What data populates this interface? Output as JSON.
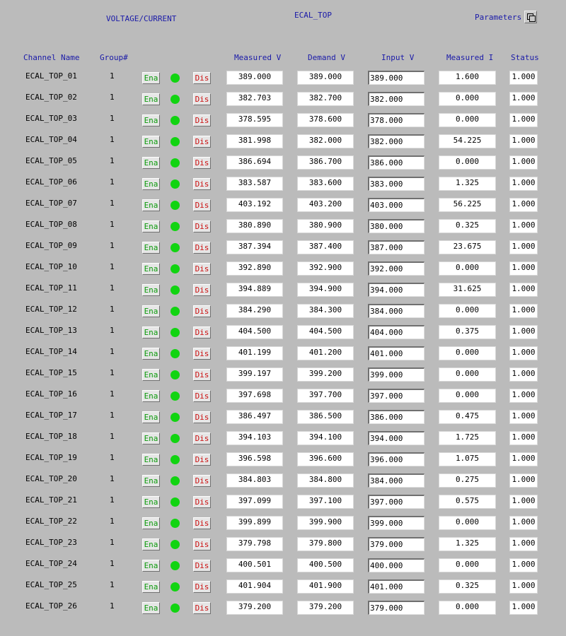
{
  "header": {
    "left_title": "VOLTAGE/CURRENT",
    "center_title": "ECAL_TOP",
    "parameters_label": "Parameters"
  },
  "columns": {
    "name": "Channel Name",
    "group": "Group#",
    "measured_v": "Measured V",
    "demand_v": "Demand V",
    "input_v": "Input V",
    "measured_i": "Measured I",
    "status": "Status"
  },
  "labels": {
    "enable": "Ena",
    "disable": "Dis"
  },
  "colors": {
    "led_on": "#11d411",
    "enable_text": "#0a9a0a",
    "disable_text": "#cc1010",
    "header_text": "#1a1aa8",
    "background": "#bbbbbb"
  },
  "channels": [
    {
      "name": "ECAL_TOP_01",
      "group": "1",
      "measured_v": "389.000",
      "demand_v": "389.000",
      "input_v": "389.000",
      "measured_i": "1.600",
      "status": "1.000"
    },
    {
      "name": "ECAL_TOP_02",
      "group": "1",
      "measured_v": "382.703",
      "demand_v": "382.700",
      "input_v": "382.000",
      "measured_i": "0.000",
      "status": "1.000"
    },
    {
      "name": "ECAL_TOP_03",
      "group": "1",
      "measured_v": "378.595",
      "demand_v": "378.600",
      "input_v": "378.000",
      "measured_i": "0.000",
      "status": "1.000"
    },
    {
      "name": "ECAL_TOP_04",
      "group": "1",
      "measured_v": "381.998",
      "demand_v": "382.000",
      "input_v": "382.000",
      "measured_i": "54.225",
      "status": "1.000"
    },
    {
      "name": "ECAL_TOP_05",
      "group": "1",
      "measured_v": "386.694",
      "demand_v": "386.700",
      "input_v": "386.000",
      "measured_i": "0.000",
      "status": "1.000"
    },
    {
      "name": "ECAL_TOP_06",
      "group": "1",
      "measured_v": "383.587",
      "demand_v": "383.600",
      "input_v": "383.000",
      "measured_i": "1.325",
      "status": "1.000"
    },
    {
      "name": "ECAL_TOP_07",
      "group": "1",
      "measured_v": "403.192",
      "demand_v": "403.200",
      "input_v": "403.000",
      "measured_i": "56.225",
      "status": "1.000"
    },
    {
      "name": "ECAL_TOP_08",
      "group": "1",
      "measured_v": "380.890",
      "demand_v": "380.900",
      "input_v": "380.000",
      "measured_i": "0.325",
      "status": "1.000"
    },
    {
      "name": "ECAL_TOP_09",
      "group": "1",
      "measured_v": "387.394",
      "demand_v": "387.400",
      "input_v": "387.000",
      "measured_i": "23.675",
      "status": "1.000"
    },
    {
      "name": "ECAL_TOP_10",
      "group": "1",
      "measured_v": "392.890",
      "demand_v": "392.900",
      "input_v": "392.000",
      "measured_i": "0.000",
      "status": "1.000"
    },
    {
      "name": "ECAL_TOP_11",
      "group": "1",
      "measured_v": "394.889",
      "demand_v": "394.900",
      "input_v": "394.000",
      "measured_i": "31.625",
      "status": "1.000"
    },
    {
      "name": "ECAL_TOP_12",
      "group": "1",
      "measured_v": "384.290",
      "demand_v": "384.300",
      "input_v": "384.000",
      "measured_i": "0.000",
      "status": "1.000"
    },
    {
      "name": "ECAL_TOP_13",
      "group": "1",
      "measured_v": "404.500",
      "demand_v": "404.500",
      "input_v": "404.000",
      "measured_i": "0.375",
      "status": "1.000"
    },
    {
      "name": "ECAL_TOP_14",
      "group": "1",
      "measured_v": "401.199",
      "demand_v": "401.200",
      "input_v": "401.000",
      "measured_i": "0.000",
      "status": "1.000"
    },
    {
      "name": "ECAL_TOP_15",
      "group": "1",
      "measured_v": "399.197",
      "demand_v": "399.200",
      "input_v": "399.000",
      "measured_i": "0.000",
      "status": "1.000"
    },
    {
      "name": "ECAL_TOP_16",
      "group": "1",
      "measured_v": "397.698",
      "demand_v": "397.700",
      "input_v": "397.000",
      "measured_i": "0.000",
      "status": "1.000"
    },
    {
      "name": "ECAL_TOP_17",
      "group": "1",
      "measured_v": "386.497",
      "demand_v": "386.500",
      "input_v": "386.000",
      "measured_i": "0.475",
      "status": "1.000"
    },
    {
      "name": "ECAL_TOP_18",
      "group": "1",
      "measured_v": "394.103",
      "demand_v": "394.100",
      "input_v": "394.000",
      "measured_i": "1.725",
      "status": "1.000"
    },
    {
      "name": "ECAL_TOP_19",
      "group": "1",
      "measured_v": "396.598",
      "demand_v": "396.600",
      "input_v": "396.000",
      "measured_i": "1.075",
      "status": "1.000"
    },
    {
      "name": "ECAL_TOP_20",
      "group": "1",
      "measured_v": "384.803",
      "demand_v": "384.800",
      "input_v": "384.000",
      "measured_i": "0.275",
      "status": "1.000"
    },
    {
      "name": "ECAL_TOP_21",
      "group": "1",
      "measured_v": "397.099",
      "demand_v": "397.100",
      "input_v": "397.000",
      "measured_i": "0.575",
      "status": "1.000"
    },
    {
      "name": "ECAL_TOP_22",
      "group": "1",
      "measured_v": "399.899",
      "demand_v": "399.900",
      "input_v": "399.000",
      "measured_i": "0.000",
      "status": "1.000"
    },
    {
      "name": "ECAL_TOP_23",
      "group": "1",
      "measured_v": "379.798",
      "demand_v": "379.800",
      "input_v": "379.000",
      "measured_i": "1.325",
      "status": "1.000"
    },
    {
      "name": "ECAL_TOP_24",
      "group": "1",
      "measured_v": "400.501",
      "demand_v": "400.500",
      "input_v": "400.000",
      "measured_i": "0.000",
      "status": "1.000"
    },
    {
      "name": "ECAL_TOP_25",
      "group": "1",
      "measured_v": "401.904",
      "demand_v": "401.900",
      "input_v": "401.000",
      "measured_i": "0.325",
      "status": "1.000"
    },
    {
      "name": "ECAL_TOP_26",
      "group": "1",
      "measured_v": "379.200",
      "demand_v": "379.200",
      "input_v": "379.000",
      "measured_i": "0.000",
      "status": "1.000"
    }
  ]
}
